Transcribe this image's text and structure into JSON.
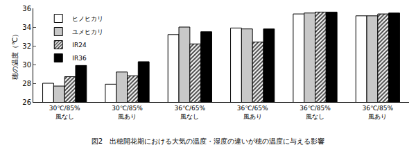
{
  "chart_data": {
    "type": "bar",
    "title": "図2　出穂開花期における大気の温度・湿度の違いが穂の温度に与える影響",
    "y_label": "穂の温度（℃）",
    "categories": [
      "30℃/85%\n風なし",
      "30℃/85%\n風あり",
      "36℃/65%\n風なし",
      "36℃/65%\n風あり",
      "36℃/85%\n風なし",
      "36℃/85%\n風あり"
    ],
    "series": [
      {
        "name": "ヒノヒカリ",
        "color": "#ffffff",
        "values": [
          28.0,
          27.9,
          33.2,
          33.9,
          35.4,
          35.2
        ]
      },
      {
        "name": "ユメヒカリ",
        "color": "#c8c8c8",
        "values": [
          27.7,
          29.2,
          34.0,
          33.8,
          35.5,
          35.2
        ]
      },
      {
        "name": "IR24",
        "color": "#444444",
        "marker": "hatch",
        "values": [
          28.7,
          28.8,
          32.2,
          32.4,
          35.6,
          35.4
        ]
      },
      {
        "name": "IR36",
        "color": "#000000",
        "values": [
          29.9,
          30.3,
          33.5,
          33.8,
          35.6,
          35.5
        ]
      }
    ],
    "ylim": [
      26,
      36
    ],
    "yticks": [
      26,
      28,
      30,
      32,
      34,
      36
    ],
    "grid": false,
    "legend": "upper left"
  }
}
